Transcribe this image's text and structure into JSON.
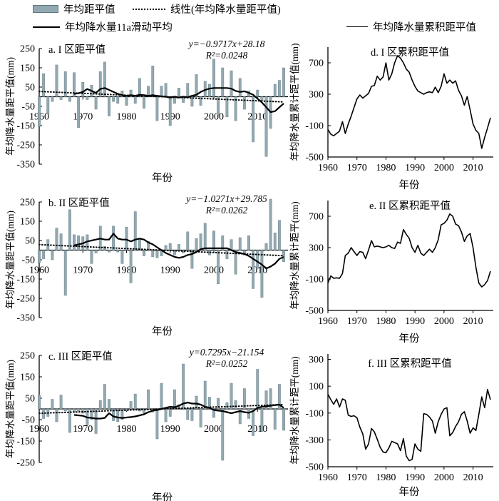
{
  "page": {
    "background": "#ffffff"
  },
  "colors": {
    "bar_fill": "#93a9b1",
    "bar_stroke": "#5e767e",
    "line": "#000000"
  },
  "legend": {
    "bar_label": "年均距平值",
    "linear_label": "线性(年均降水量距平值)",
    "ma_label": "年均降水量11a滑动平均",
    "cum_label": "年均降水量累积距平值"
  },
  "chart_data": [
    {
      "id": "a",
      "type": "bar",
      "title": "a. I 区距平值",
      "equation": "y=−0.9717x+28.18",
      "r2": "R²=0.0248",
      "ylabel": "年均降水量距平值(mm)",
      "xlabel": "年份",
      "ylim": [
        -350,
        250
      ],
      "yticks": [
        250,
        150,
        50,
        -50,
        -150,
        -250,
        -350
      ],
      "xticks": [
        1960,
        1970,
        1980,
        1990,
        2000,
        2010
      ],
      "x_start": 1960,
      "x_end": 2016,
      "values": [
        -155,
        120,
        -90,
        -25,
        165,
        -15,
        130,
        -25,
        125,
        -160,
        75,
        -15,
        60,
        -65,
        130,
        180,
        -100,
        -25,
        -35,
        30,
        -45,
        35,
        -35,
        95,
        -60,
        55,
        160,
        -125,
        55,
        70,
        -150,
        -35,
        45,
        -30,
        70,
        -50,
        115,
        -45,
        80,
        65,
        195,
        -95,
        150,
        -105,
        135,
        -125,
        95,
        -65,
        30,
        -235,
        35,
        -20,
        -310,
        -165,
        65,
        85,
        150
      ],
      "ma_start": 1968,
      "ma": [
        15,
        18,
        25,
        40,
        30,
        20,
        40,
        45,
        35,
        25,
        15,
        8,
        5,
        8,
        5,
        10,
        8,
        5,
        8,
        5,
        2,
        0,
        -5,
        0,
        -5,
        0,
        -3,
        5,
        10,
        25,
        35,
        42,
        45,
        45,
        45,
        45,
        42,
        30,
        25,
        28,
        20,
        10,
        -10,
        -30,
        -55,
        -80,
        -75,
        -55,
        -35
      ],
      "trend": [
        27.2,
        -27.2
      ]
    },
    {
      "id": "b",
      "type": "bar",
      "title": "b. II 区距平值",
      "equation": "y=−1.0271x+29.785",
      "r2": "R²=0.0262",
      "ylabel": "年均降水量距平值(mm)",
      "xlabel": "年份",
      "ylim": [
        -350,
        250
      ],
      "yticks": [
        250,
        150,
        50,
        -50,
        -150,
        -250,
        -350
      ],
      "xticks": [
        1960,
        1970,
        1980,
        1990,
        2000,
        2010
      ],
      "x_start": 1960,
      "x_end": 2016,
      "values": [
        -65,
        -45,
        55,
        -50,
        115,
        85,
        -235,
        210,
        80,
        75,
        70,
        80,
        -70,
        -15,
        125,
        20,
        -10,
        125,
        -10,
        -70,
        120,
        -170,
        200,
        60,
        -30,
        45,
        -35,
        -40,
        -30,
        25,
        35,
        -25,
        30,
        -15,
        95,
        -95,
        60,
        85,
        140,
        -25,
        100,
        -175,
        75,
        -45,
        55,
        -125,
        65,
        -25,
        75,
        -200,
        -95,
        -245,
        35,
        265,
        90,
        155,
        -60
      ],
      "ma_start": 1968,
      "ma": [
        25,
        30,
        35,
        45,
        50,
        55,
        60,
        55,
        55,
        85,
        60,
        55,
        55,
        45,
        55,
        60,
        55,
        40,
        30,
        15,
        0,
        -15,
        -25,
        -35,
        -40,
        -35,
        -25,
        -20,
        -10,
        5,
        10,
        10,
        10,
        10,
        10,
        10,
        0,
        -10,
        -15,
        -20,
        -30,
        -45,
        -60,
        -75,
        -95,
        -85,
        -70,
        -45,
        -35
      ],
      "trend": [
        28.8,
        -28.8
      ]
    },
    {
      "id": "c",
      "type": "bar",
      "title": "c. III 区距平值",
      "equation": "y=0.7295x−21.154",
      "r2": "R²=0.0252",
      "ylabel": "年均降水量距平值(mm)",
      "xlabel": "年份",
      "ylim": [
        -250,
        250
      ],
      "yticks": [
        250,
        150,
        50,
        -50,
        -150,
        -250
      ],
      "xticks": [
        1960,
        1970,
        1980,
        1990,
        2000,
        2010
      ],
      "x_start": 1960,
      "x_end": 2016,
      "values": [
        65,
        -45,
        -35,
        45,
        -60,
        65,
        -10,
        -110,
        -15,
        -10,
        -20,
        -75,
        -50,
        -115,
        40,
        115,
        45,
        -55,
        -60,
        -50,
        -10,
        35,
        70,
        -10,
        -20,
        90,
        -15,
        -140,
        120,
        -60,
        -35,
        90,
        20,
        210,
        -50,
        -55,
        60,
        -85,
        130,
        55,
        -40,
        50,
        -240,
        30,
        120,
        40,
        -70,
        95,
        -45,
        -125,
        185,
        -105,
        85,
        95,
        -95,
        115,
        -100
      ],
      "ma_start": 1968,
      "ma": [
        -28,
        -30,
        -32,
        -40,
        -42,
        -45,
        -45,
        -42,
        -20,
        -35,
        -40,
        -42,
        -40,
        -38,
        -35,
        -30,
        -25,
        -15,
        -8,
        -5,
        0,
        5,
        10,
        8,
        15,
        25,
        30,
        25,
        25,
        20,
        10,
        5,
        -5,
        -8,
        -10,
        -15,
        -20,
        -15,
        -10,
        -15,
        -18,
        -10,
        5,
        10,
        12,
        15,
        18,
        20,
        5
      ],
      "trend": [
        -20.4,
        20.4
      ]
    },
    {
      "id": "d",
      "type": "line",
      "title": "d. I 区累积距平值",
      "ylabel": "年均降水量累计距平值(mm)",
      "xlabel": "年份",
      "ylim": [
        -500,
        900
      ],
      "yticks": [
        700,
        300,
        -100,
        -500
      ],
      "xticks": [
        1960,
        1970,
        1980,
        1990,
        2000,
        2010
      ],
      "x_start": 1960,
      "x_end": 2016,
      "values": [
        -150,
        -210,
        -230,
        -200,
        -170,
        -50,
        -200,
        -80,
        20,
        130,
        240,
        290,
        250,
        280,
        310,
        400,
        410,
        530,
        480,
        520,
        700,
        480,
        560,
        700,
        790,
        760,
        700,
        620,
        580,
        480,
        400,
        340,
        320,
        300,
        320,
        330,
        320,
        390,
        320,
        400,
        560,
        440,
        480,
        440,
        470,
        350,
        280,
        160,
        270,
        100,
        -80,
        -160,
        -200,
        -390,
        -250,
        -130,
        0
      ]
    },
    {
      "id": "e",
      "type": "line",
      "title": "e. II 区累积距平值",
      "ylabel": "年均降水量累计距平(mm)",
      "xlabel": "年份",
      "ylim": [
        -500,
        900
      ],
      "yticks": [
        700,
        300,
        -100,
        -500
      ],
      "xticks": [
        1960,
        1970,
        1980,
        1990,
        2000,
        2010
      ],
      "x_start": 1960,
      "x_end": 2016,
      "values": [
        -150,
        -60,
        -90,
        -85,
        -90,
        -30,
        200,
        230,
        300,
        250,
        200,
        250,
        240,
        160,
        270,
        390,
        310,
        320,
        310,
        300,
        310,
        330,
        300,
        290,
        370,
        355,
        530,
        470,
        420,
        300,
        240,
        330,
        230,
        200,
        240,
        280,
        240,
        300,
        400,
        590,
        610,
        650,
        730,
        700,
        600,
        580,
        500,
        380,
        450,
        480,
        300,
        50,
        -150,
        -200,
        -170,
        -120,
        0
      ]
    },
    {
      "id": "f",
      "type": "line",
      "title": "f. III 区累积距平值",
      "ylabel": "年均降水量累计距平(mm)",
      "xlabel": "年份",
      "ylim": [
        -500,
        340
      ],
      "yticks": [
        300,
        100,
        -100,
        -300,
        -500
      ],
      "xticks": [
        1960,
        1970,
        1980,
        1990,
        2000,
        2010
      ],
      "x_start": 1960,
      "x_end": 2016,
      "values": [
        40,
        0,
        -35,
        5,
        -55,
        5,
        -5,
        -115,
        -125,
        -120,
        -135,
        -205,
        -255,
        -370,
        -330,
        -215,
        -240,
        -295,
        -355,
        -390,
        -395,
        -360,
        -310,
        -320,
        -330,
        -380,
        -290,
        -420,
        -455,
        -445,
        -330,
        -370,
        -385,
        -105,
        -110,
        -130,
        -160,
        -250,
        -165,
        -110,
        -70,
        -60,
        -270,
        -245,
        -200,
        -165,
        -110,
        -90,
        -160,
        -250,
        -210,
        -230,
        -110,
        20,
        -60,
        75,
        0
      ]
    }
  ]
}
